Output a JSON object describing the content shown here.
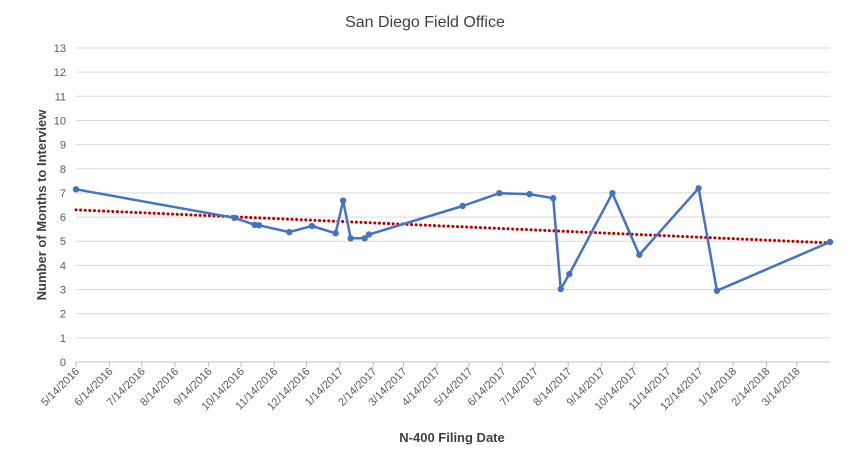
{
  "chart_data": {
    "type": "line",
    "title": "San Diego Field Office",
    "xlabel": "N-400 Filing Date",
    "ylabel": "Number of Months to Interview",
    "ylim": [
      0,
      13
    ],
    "y_ticks": [
      "0",
      "1",
      "2",
      "3",
      "4",
      "5",
      "6",
      "7",
      "8",
      "9",
      "10",
      "11",
      "12",
      "13"
    ],
    "x_ticks": [
      "5/14/2016",
      "6/14/2016",
      "7/14/2016",
      "8/14/2016",
      "9/14/2016",
      "10/14/2016",
      "11/14/2016",
      "12/14/2016",
      "1/14/2017",
      "2/14/2017",
      "3/14/2017",
      "4/14/2017",
      "5/14/2017",
      "6/14/2017",
      "7/14/2017",
      "8/14/2017",
      "9/14/2017",
      "10/14/2017",
      "11/14/2017",
      "12/14/2017",
      "1/14/2018",
      "2/14/2018",
      "3/14/2018"
    ],
    "xlim": [
      "2016-05-14",
      "2018-04-14"
    ],
    "grid": true,
    "series": [
      {
        "color": "#4472c4",
        "points": [
          {
            "x": "2016-05-14",
            "y": 7.15
          },
          {
            "x": "2016-10-08",
            "y": 5.97
          },
          {
            "x": "2016-10-27",
            "y": 5.68
          },
          {
            "x": "2016-10-31",
            "y": 5.66
          },
          {
            "x": "2016-11-28",
            "y": 5.38
          },
          {
            "x": "2016-12-19",
            "y": 5.63
          },
          {
            "x": "2017-01-10",
            "y": 5.33
          },
          {
            "x": "2017-01-17",
            "y": 6.68
          },
          {
            "x": "2017-01-24",
            "y": 5.12
          },
          {
            "x": "2017-02-06",
            "y": 5.12
          },
          {
            "x": "2017-02-10",
            "y": 5.28
          },
          {
            "x": "2017-05-08",
            "y": 6.46
          },
          {
            "x": "2017-06-11",
            "y": 6.99
          },
          {
            "x": "2017-07-09",
            "y": 6.95
          },
          {
            "x": "2017-07-31",
            "y": 6.78
          },
          {
            "x": "2017-08-07",
            "y": 3.02
          },
          {
            "x": "2017-08-15",
            "y": 3.64
          },
          {
            "x": "2017-09-24",
            "y": 6.99
          },
          {
            "x": "2017-10-19",
            "y": 4.44
          },
          {
            "x": "2017-12-13",
            "y": 7.19
          },
          {
            "x": "2017-12-30",
            "y": 2.95
          },
          {
            "x": "2018-04-14",
            "y": 4.97
          }
        ]
      }
    ],
    "trendline": {
      "color": "#c00000",
      "style": "dotted",
      "start": {
        "x": "2016-05-14",
        "y": 6.3
      },
      "end": {
        "x": "2018-04-14",
        "y": 4.93
      }
    }
  }
}
